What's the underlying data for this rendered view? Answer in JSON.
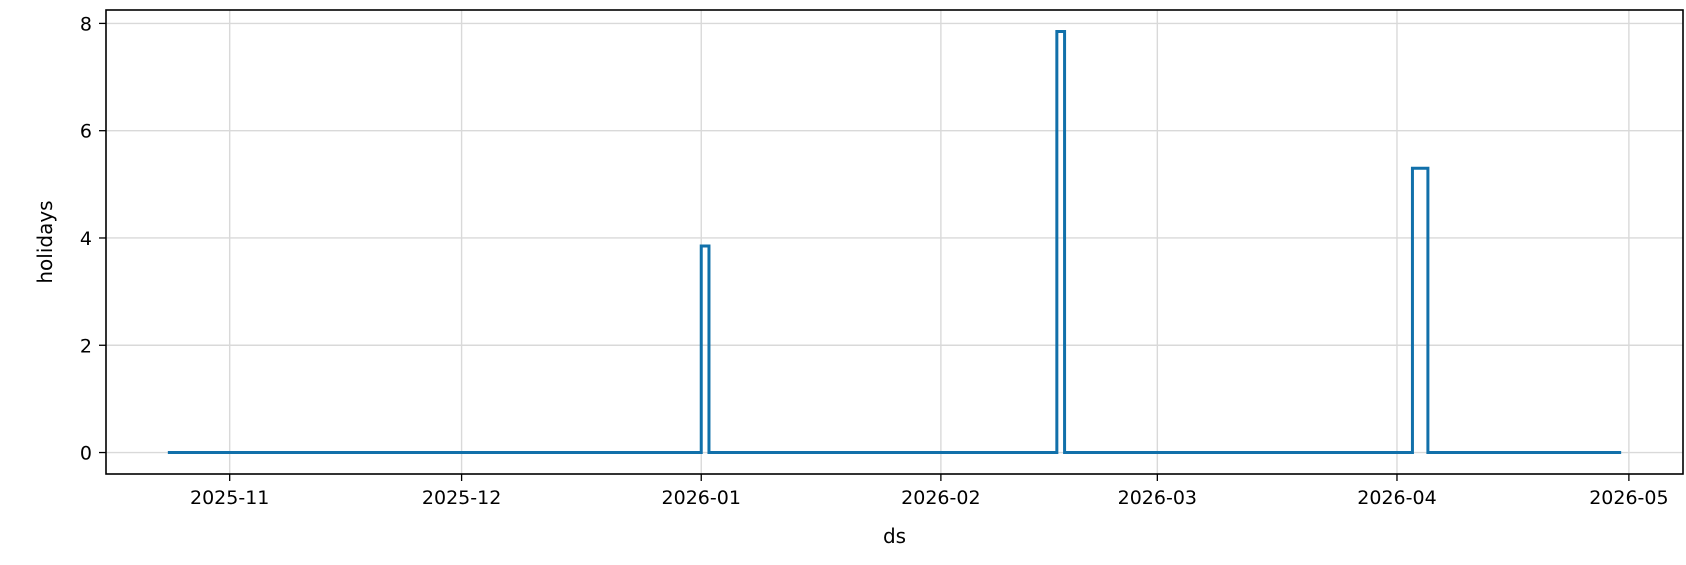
{
  "chart_data": {
    "type": "line",
    "drawstyle": "steps-post",
    "title": "",
    "xlabel": "ds",
    "ylabel": "holidays",
    "x_axis_type": "date",
    "xlim": [
      "2025-10-16",
      "2026-05-08"
    ],
    "ylim": [
      -0.4,
      8.25
    ],
    "x_ticks": [
      "2025-11",
      "2025-12",
      "2026-01",
      "2026-02",
      "2026-03",
      "2026-04",
      "2026-05"
    ],
    "y_ticks": [
      0,
      2,
      4,
      6,
      8
    ],
    "grid": true,
    "legend": "none",
    "series": [
      {
        "color": "#1170aa",
        "points": [
          {
            "x": "2025-10-24",
            "y": 0
          },
          {
            "x": "2026-01-01",
            "y": 3.85
          },
          {
            "x": "2026-01-02",
            "y": 0
          },
          {
            "x": "2026-02-16",
            "y": 7.85
          },
          {
            "x": "2026-02-17",
            "y": 0
          },
          {
            "x": "2026-04-03",
            "y": 5.3
          },
          {
            "x": "2026-04-05",
            "y": 0
          },
          {
            "x": "2026-04-30",
            "y": 0
          }
        ]
      }
    ]
  }
}
